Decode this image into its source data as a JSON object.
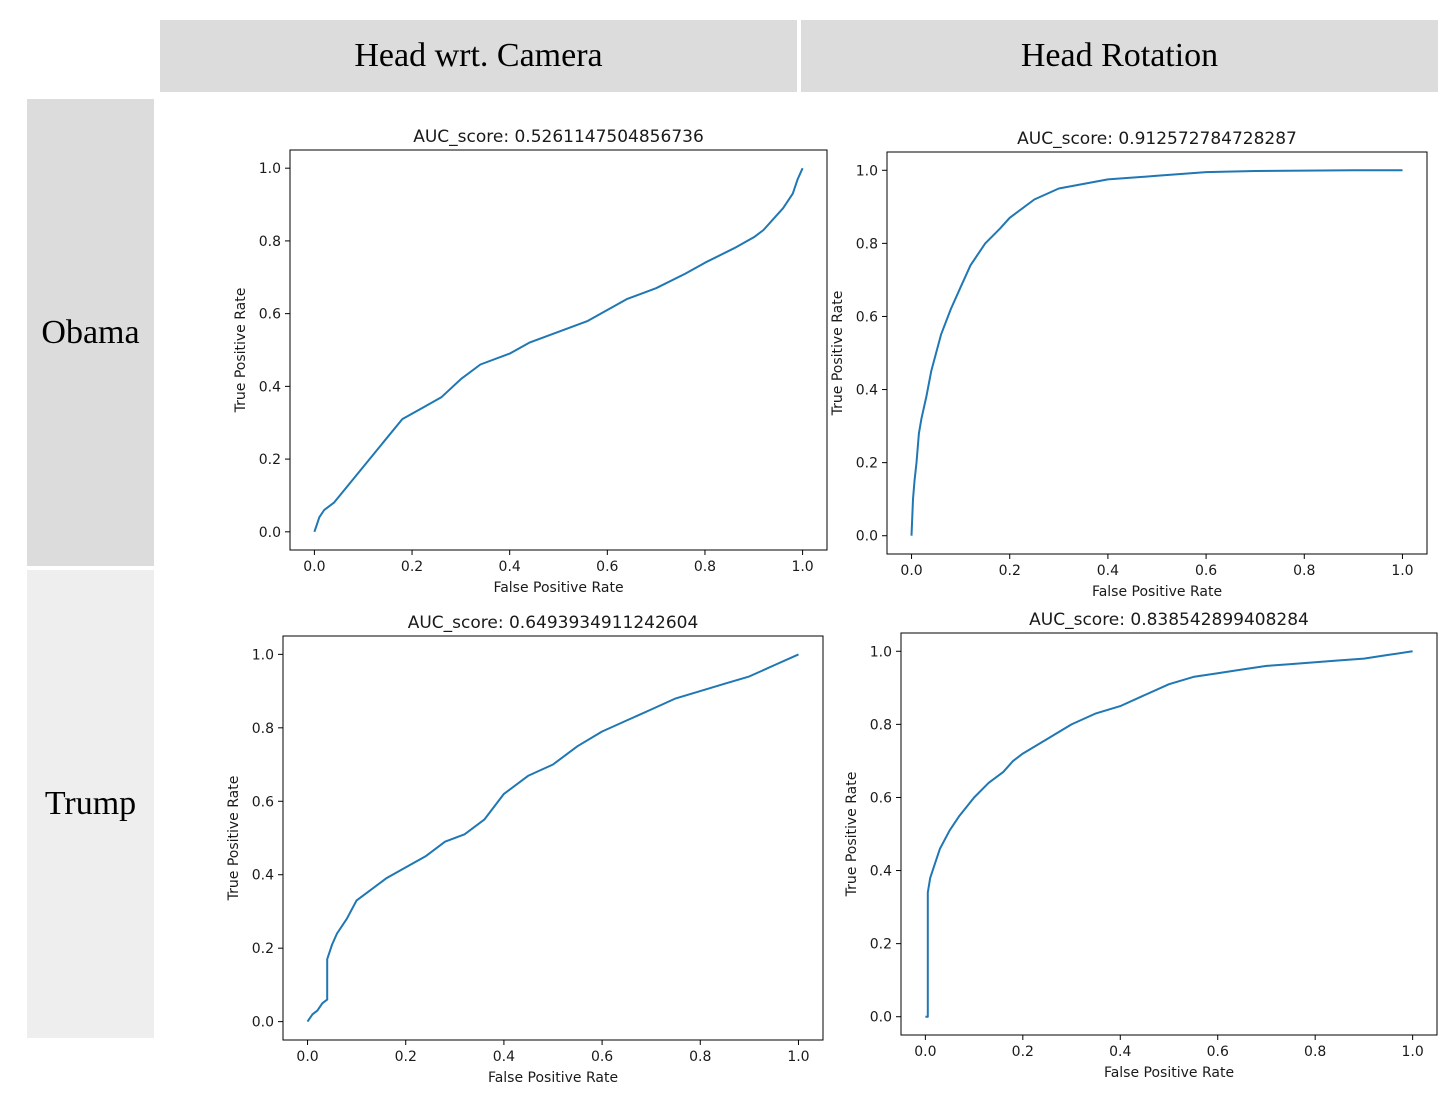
{
  "column_headers": [
    "Head wrt. Camera",
    "Head Rotation"
  ],
  "row_headers": [
    "Obama",
    "Trump"
  ],
  "colors": {
    "line": "#1f77b4",
    "header_bg": "#dcdcdc",
    "row_obama_bg": "#dcdcdc",
    "row_trump_bg": "#eeeeee"
  },
  "chart_data": [
    {
      "type": "line",
      "title": "AUC_score: 0.5261147504856736",
      "xlabel": "False Positive Rate",
      "ylabel": "True Positive Rate",
      "xlim": [
        -0.05,
        1.05
      ],
      "ylim": [
        -0.05,
        1.05
      ],
      "xticks": [
        "0.0",
        "0.2",
        "0.4",
        "0.6",
        "0.8",
        "1.0"
      ],
      "yticks": [
        "0.0",
        "0.2",
        "0.4",
        "0.6",
        "0.8",
        "1.0"
      ],
      "series": [
        {
          "x": [
            0,
            0.005,
            0.01,
            0.02,
            0.04,
            0.18,
            0.22,
            0.26,
            0.3,
            0.34,
            0.4,
            0.44,
            0.5,
            0.56,
            0.6,
            0.64,
            0.7,
            0.76,
            0.8,
            0.86,
            0.9,
            0.92,
            0.94,
            0.96,
            0.98,
            0.99,
            1.0
          ],
          "y": [
            0,
            0.02,
            0.04,
            0.06,
            0.08,
            0.31,
            0.34,
            0.37,
            0.42,
            0.46,
            0.49,
            0.52,
            0.55,
            0.58,
            0.61,
            0.64,
            0.67,
            0.71,
            0.74,
            0.78,
            0.81,
            0.83,
            0.86,
            0.89,
            0.93,
            0.97,
            1.0
          ]
        }
      ]
    },
    {
      "type": "line",
      "title": "AUC_score: 0.912572784728287",
      "xlabel": "False Positive Rate",
      "ylabel": "True Positive Rate",
      "xlim": [
        -0.05,
        1.05
      ],
      "ylim": [
        -0.05,
        1.05
      ],
      "xticks": [
        "0.0",
        "0.2",
        "0.4",
        "0.6",
        "0.8",
        "1.0"
      ],
      "yticks": [
        "0.0",
        "0.2",
        "0.4",
        "0.6",
        "0.8",
        "1.0"
      ],
      "series": [
        {
          "x": [
            0,
            0.003,
            0.006,
            0.01,
            0.015,
            0.02,
            0.03,
            0.04,
            0.05,
            0.06,
            0.08,
            0.1,
            0.12,
            0.15,
            0.18,
            0.2,
            0.25,
            0.3,
            0.4,
            0.5,
            0.6,
            0.7,
            0.8,
            0.9,
            1.0
          ],
          "y": [
            0,
            0.1,
            0.15,
            0.2,
            0.28,
            0.32,
            0.38,
            0.45,
            0.5,
            0.55,
            0.62,
            0.68,
            0.74,
            0.8,
            0.84,
            0.87,
            0.92,
            0.95,
            0.975,
            0.985,
            0.995,
            0.998,
            0.999,
            1.0,
            1.0
          ]
        }
      ]
    },
    {
      "type": "line",
      "title": "AUC_score: 0.6493934911242604",
      "xlabel": "False Positive Rate",
      "ylabel": "True Positive Rate",
      "xlim": [
        -0.05,
        1.05
      ],
      "ylim": [
        -0.05,
        1.05
      ],
      "xticks": [
        "0.0",
        "0.2",
        "0.4",
        "0.6",
        "0.8",
        "1.0"
      ],
      "yticks": [
        "0.0",
        "0.2",
        "0.4",
        "0.6",
        "0.8",
        "1.0"
      ],
      "series": [
        {
          "x": [
            0,
            0.01,
            0.02,
            0.03,
            0.04,
            0.04,
            0.05,
            0.06,
            0.08,
            0.1,
            0.13,
            0.16,
            0.2,
            0.24,
            0.28,
            0.32,
            0.36,
            0.4,
            0.45,
            0.5,
            0.55,
            0.6,
            0.65,
            0.7,
            0.75,
            0.8,
            0.85,
            0.9,
            0.95,
            1.0
          ],
          "y": [
            0,
            0.02,
            0.03,
            0.05,
            0.06,
            0.17,
            0.21,
            0.24,
            0.28,
            0.33,
            0.36,
            0.39,
            0.42,
            0.45,
            0.49,
            0.51,
            0.55,
            0.62,
            0.67,
            0.7,
            0.75,
            0.79,
            0.82,
            0.85,
            0.88,
            0.9,
            0.92,
            0.94,
            0.97,
            1.0
          ]
        }
      ]
    },
    {
      "type": "line",
      "title": "AUC_score: 0.838542899408284",
      "xlabel": "False Positive Rate",
      "ylabel": "True Positive Rate",
      "xlim": [
        -0.05,
        1.05
      ],
      "ylim": [
        -0.05,
        1.05
      ],
      "xticks": [
        "0.0",
        "0.2",
        "0.4",
        "0.6",
        "0.8",
        "1.0"
      ],
      "yticks": [
        "0.0",
        "0.2",
        "0.4",
        "0.6",
        "0.8",
        "1.0"
      ],
      "series": [
        {
          "x": [
            0,
            0.005,
            0.005,
            0.01,
            0.02,
            0.03,
            0.05,
            0.07,
            0.1,
            0.13,
            0.16,
            0.18,
            0.2,
            0.25,
            0.3,
            0.35,
            0.4,
            0.45,
            0.5,
            0.55,
            0.6,
            0.65,
            0.7,
            0.75,
            0.8,
            0.85,
            0.9,
            0.95,
            1.0
          ],
          "y": [
            0,
            0.0,
            0.34,
            0.38,
            0.42,
            0.46,
            0.51,
            0.55,
            0.6,
            0.64,
            0.67,
            0.7,
            0.72,
            0.76,
            0.8,
            0.83,
            0.85,
            0.88,
            0.91,
            0.93,
            0.94,
            0.95,
            0.96,
            0.965,
            0.97,
            0.975,
            0.98,
            0.99,
            1.0
          ]
        }
      ]
    }
  ]
}
